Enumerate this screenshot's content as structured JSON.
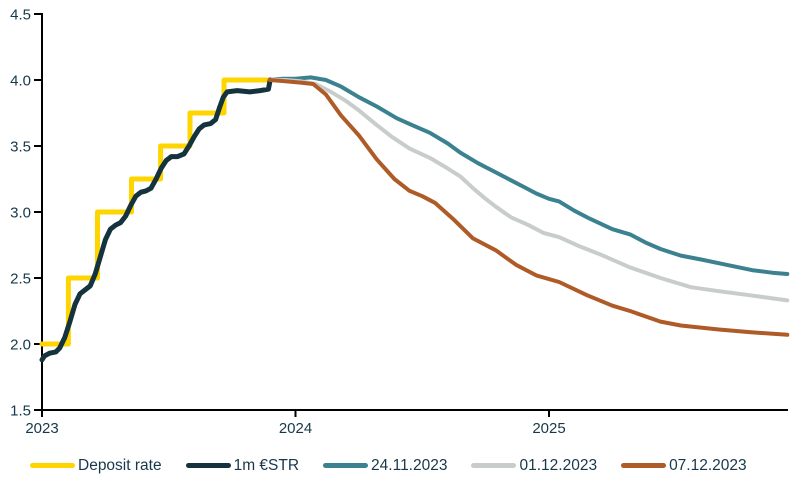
{
  "chart_data": {
    "type": "line",
    "title": "",
    "xlabel": "",
    "ylabel": "",
    "ylim": [
      1.5,
      4.5
    ],
    "xlim": [
      2023.0,
      2025.94
    ],
    "yticks": [
      1.5,
      2.0,
      2.5,
      3.0,
      3.5,
      4.0,
      4.5
    ],
    "ytick_labels": [
      "1.5",
      "2.0",
      "2.5",
      "3.0",
      "3.5",
      "4.0",
      "4.5"
    ],
    "xticks": [
      2023,
      2024,
      2025
    ],
    "xtick_labels": [
      "2023",
      "2024",
      "2025"
    ],
    "grid": false,
    "legend_position": "bottom",
    "axis_color": "#000000",
    "text_color": "#17384A",
    "series": [
      {
        "name": "Deposit rate",
        "color": "#FFD500",
        "width": 5,
        "points": [
          [
            2023.0,
            2.0
          ],
          [
            2023.104,
            2.0
          ],
          [
            2023.104,
            2.5
          ],
          [
            2023.219,
            2.5
          ],
          [
            2023.219,
            3.0
          ],
          [
            2023.353,
            3.0
          ],
          [
            2023.353,
            3.25
          ],
          [
            2023.468,
            3.25
          ],
          [
            2023.468,
            3.5
          ],
          [
            2023.584,
            3.5
          ],
          [
            2023.584,
            3.75
          ],
          [
            2023.718,
            3.75
          ],
          [
            2023.718,
            4.0
          ],
          [
            2023.9,
            4.0
          ]
        ]
      },
      {
        "name": "1m €STR",
        "color": "#14333F",
        "width": 5,
        "points": [
          [
            2023.0,
            1.88
          ],
          [
            2023.01,
            1.91
          ],
          [
            2023.03,
            1.93
          ],
          [
            2023.055,
            1.94
          ],
          [
            2023.07,
            1.97
          ],
          [
            2023.09,
            2.05
          ],
          [
            2023.11,
            2.17
          ],
          [
            2023.13,
            2.3
          ],
          [
            2023.15,
            2.38
          ],
          [
            2023.17,
            2.41
          ],
          [
            2023.19,
            2.44
          ],
          [
            2023.21,
            2.53
          ],
          [
            2023.23,
            2.66
          ],
          [
            2023.25,
            2.79
          ],
          [
            2023.27,
            2.87
          ],
          [
            2023.29,
            2.9
          ],
          [
            2023.31,
            2.92
          ],
          [
            2023.33,
            2.97
          ],
          [
            2023.35,
            3.05
          ],
          [
            2023.37,
            3.12
          ],
          [
            2023.39,
            3.15
          ],
          [
            2023.41,
            3.16
          ],
          [
            2023.43,
            3.18
          ],
          [
            2023.45,
            3.25
          ],
          [
            2023.47,
            3.33
          ],
          [
            2023.49,
            3.39
          ],
          [
            2023.51,
            3.42
          ],
          [
            2023.535,
            3.42
          ],
          [
            2023.56,
            3.44
          ],
          [
            2023.58,
            3.5
          ],
          [
            2023.6,
            3.57
          ],
          [
            2023.62,
            3.63
          ],
          [
            2023.64,
            3.66
          ],
          [
            2023.665,
            3.67
          ],
          [
            2023.685,
            3.7
          ],
          [
            2023.7,
            3.79
          ],
          [
            2023.715,
            3.87
          ],
          [
            2023.73,
            3.91
          ],
          [
            2023.77,
            3.92
          ],
          [
            2023.82,
            3.91
          ],
          [
            2023.86,
            3.92
          ],
          [
            2023.893,
            3.93
          ],
          [
            2023.9,
            4.0
          ]
        ]
      },
      {
        "name": "24.11.2023",
        "color": "#3C8190",
        "width": 4,
        "points": [
          [
            2023.9,
            4.0
          ],
          [
            2023.95,
            4.01
          ],
          [
            2024.0,
            4.01
          ],
          [
            2024.06,
            4.02
          ],
          [
            2024.12,
            4.0
          ],
          [
            2024.18,
            3.95
          ],
          [
            2024.25,
            3.87
          ],
          [
            2024.32,
            3.8
          ],
          [
            2024.4,
            3.71
          ],
          [
            2024.47,
            3.65
          ],
          [
            2024.53,
            3.6
          ],
          [
            2024.6,
            3.52
          ],
          [
            2024.65,
            3.45
          ],
          [
            2024.72,
            3.37
          ],
          [
            2024.79,
            3.3
          ],
          [
            2024.85,
            3.24
          ],
          [
            2024.9,
            3.19
          ],
          [
            2024.95,
            3.14
          ],
          [
            2025.0,
            3.1
          ],
          [
            2025.04,
            3.08
          ],
          [
            2025.1,
            3.01
          ],
          [
            2025.16,
            2.95
          ],
          [
            2025.25,
            2.87
          ],
          [
            2025.32,
            2.83
          ],
          [
            2025.38,
            2.77
          ],
          [
            2025.44,
            2.72
          ],
          [
            2025.52,
            2.67
          ],
          [
            2025.6,
            2.64
          ],
          [
            2025.7,
            2.6
          ],
          [
            2025.8,
            2.56
          ],
          [
            2025.88,
            2.54
          ],
          [
            2025.94,
            2.53
          ]
        ]
      },
      {
        "name": "01.12.2023",
        "color": "#C8CDCB",
        "width": 4,
        "points": [
          [
            2023.9,
            4.0
          ],
          [
            2023.96,
            4.0
          ],
          [
            2024.02,
            3.99
          ],
          [
            2024.08,
            3.97
          ],
          [
            2024.14,
            3.91
          ],
          [
            2024.2,
            3.84
          ],
          [
            2024.25,
            3.77
          ],
          [
            2024.32,
            3.66
          ],
          [
            2024.38,
            3.57
          ],
          [
            2024.45,
            3.48
          ],
          [
            2024.53,
            3.41
          ],
          [
            2024.6,
            3.33
          ],
          [
            2024.65,
            3.27
          ],
          [
            2024.7,
            3.18
          ],
          [
            2024.75,
            3.1
          ],
          [
            2024.79,
            3.04
          ],
          [
            2024.85,
            2.96
          ],
          [
            2024.92,
            2.9
          ],
          [
            2024.98,
            2.84
          ],
          [
            2025.04,
            2.81
          ],
          [
            2025.12,
            2.74
          ],
          [
            2025.2,
            2.68
          ],
          [
            2025.32,
            2.58
          ],
          [
            2025.44,
            2.5
          ],
          [
            2025.56,
            2.43
          ],
          [
            2025.67,
            2.4
          ],
          [
            2025.79,
            2.37
          ],
          [
            2025.94,
            2.33
          ]
        ]
      },
      {
        "name": "07.12.2023",
        "color": "#AE5B28",
        "width": 4,
        "points": [
          [
            2023.9,
            4.0
          ],
          [
            2023.96,
            3.99
          ],
          [
            2024.02,
            3.98
          ],
          [
            2024.07,
            3.97
          ],
          [
            2024.12,
            3.89
          ],
          [
            2024.18,
            3.73
          ],
          [
            2024.25,
            3.58
          ],
          [
            2024.32,
            3.4
          ],
          [
            2024.39,
            3.25
          ],
          [
            2024.45,
            3.16
          ],
          [
            2024.5,
            3.12
          ],
          [
            2024.55,
            3.07
          ],
          [
            2024.62,
            2.95
          ],
          [
            2024.7,
            2.8
          ],
          [
            2024.79,
            2.71
          ],
          [
            2024.87,
            2.6
          ],
          [
            2024.95,
            2.52
          ],
          [
            2025.04,
            2.47
          ],
          [
            2025.15,
            2.37
          ],
          [
            2025.25,
            2.29
          ],
          [
            2025.32,
            2.25
          ],
          [
            2025.44,
            2.17
          ],
          [
            2025.52,
            2.14
          ],
          [
            2025.67,
            2.11
          ],
          [
            2025.79,
            2.09
          ],
          [
            2025.94,
            2.07
          ]
        ]
      }
    ]
  }
}
